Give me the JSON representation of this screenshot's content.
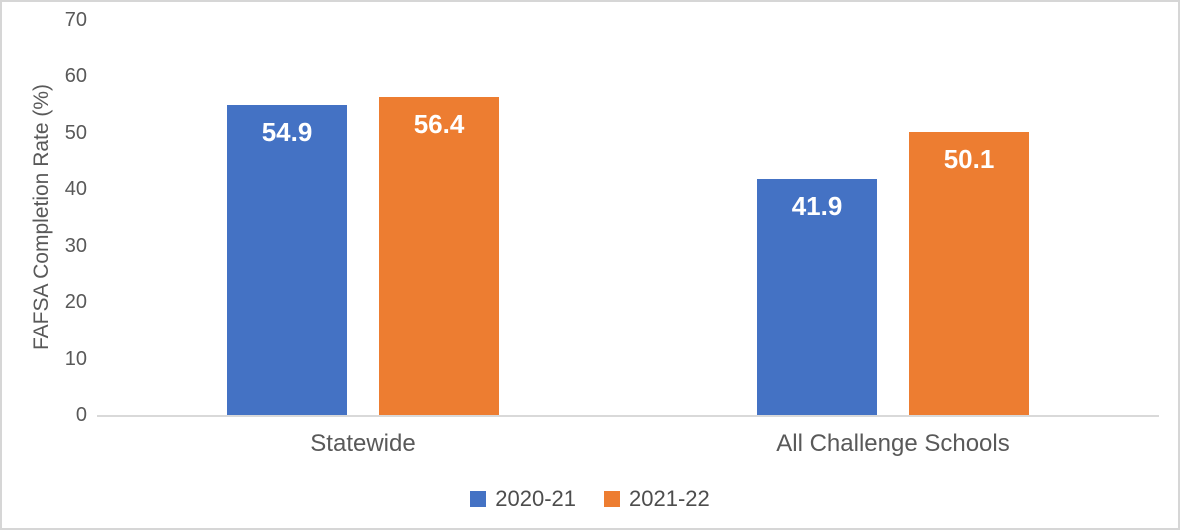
{
  "chart_data": {
    "type": "bar",
    "categories": [
      "Statewide",
      "All Challenge Schools"
    ],
    "series": [
      {
        "name": "2020-21",
        "color": "#4472C4",
        "values": [
          54.9,
          41.9
        ]
      },
      {
        "name": "2021-22",
        "color": "#ED7D31",
        "values": [
          56.4,
          50.1
        ]
      }
    ],
    "data_labels": [
      [
        "54.9",
        "41.9"
      ],
      [
        "56.4",
        "50.1"
      ]
    ],
    "title": "",
    "xlabel": "",
    "ylabel": "FAFSA Completion Rate (%)",
    "ylim": [
      0,
      70
    ],
    "yticks": [
      0,
      10,
      20,
      30,
      40,
      50,
      60,
      70
    ],
    "grid": false,
    "legend_position": "bottom",
    "data_label_color": "#FFFFFF"
  },
  "colors": {
    "axis_line": "#D9D9D9",
    "tick_text": "#595959",
    "background": "#FFFFFF",
    "border": "#D6D6D6"
  }
}
